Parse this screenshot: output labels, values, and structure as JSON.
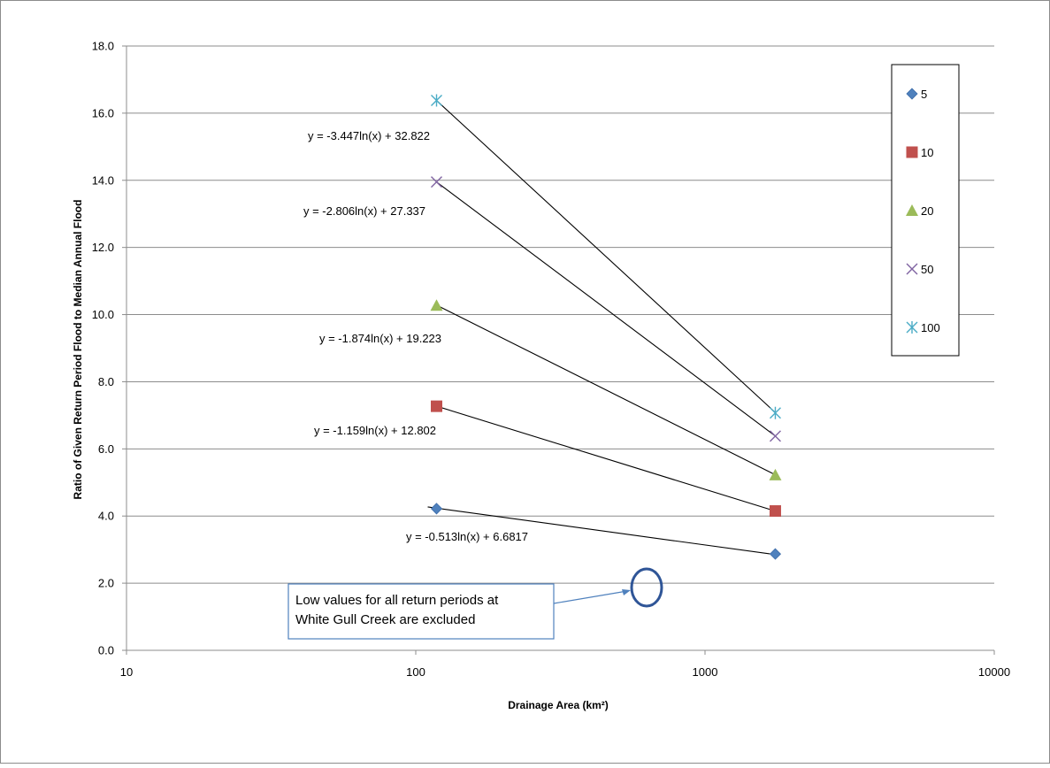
{
  "chart_data": {
    "type": "scatter",
    "x_scale": "log",
    "xlabel": "Drainage Area (km²)",
    "ylabel": "Ratio of Given Return Period Flood to Median Annual Flood",
    "xlim": [
      10,
      10000
    ],
    "ylim": [
      0,
      18
    ],
    "x_ticks": [
      "10",
      "100",
      "1000",
      "10000"
    ],
    "y_ticks": [
      "0.0",
      "2.0",
      "4.0",
      "6.0",
      "8.0",
      "10.0",
      "12.0",
      "14.0",
      "16.0",
      "18.0"
    ],
    "grid": "horizontal",
    "legend_position": "right",
    "series": [
      {
        "name": "5",
        "marker": "diamond",
        "color": "#4F81BD",
        "x": [
          118,
          1750
        ],
        "y": [
          4.22,
          2.87
        ],
        "trendline": {
          "equation": "y = -0.513ln(x) + 6.6817",
          "a": -0.513,
          "b": 6.6817,
          "x_from": 110,
          "x_to": 1750
        }
      },
      {
        "name": "10",
        "marker": "square",
        "color": "#C0504D",
        "x": [
          118,
          1750
        ],
        "y": [
          7.27,
          4.15
        ],
        "trendline": {
          "equation": "y = -1.159ln(x) + 12.802",
          "a": -1.159,
          "b": 12.802,
          "x_from": 118,
          "x_to": 1750
        }
      },
      {
        "name": "20",
        "marker": "triangle",
        "color": "#9BBB59",
        "x": [
          118,
          1750
        ],
        "y": [
          10.27,
          5.22
        ],
        "trendline": {
          "equation": "y = -1.874ln(x) + 19.223",
          "a": -1.874,
          "b": 19.223,
          "x_from": 118,
          "x_to": 1750
        }
      },
      {
        "name": "50",
        "marker": "x",
        "color": "#8064A2",
        "x": [
          118,
          1750
        ],
        "y": [
          13.95,
          6.38
        ],
        "trendline": {
          "equation": "y = -2.806ln(x) + 27.337",
          "a": -2.806,
          "b": 27.337,
          "x_from": 118,
          "x_to": 1750
        }
      },
      {
        "name": "100",
        "marker": "star",
        "color": "#4BACC6",
        "x": [
          118,
          1750
        ],
        "y": [
          16.38,
          7.07
        ],
        "trendline": {
          "equation": "y = -3.447ln(x) + 32.822",
          "a": -3.447,
          "b": 32.822,
          "x_from": 118,
          "x_to": 1750
        }
      }
    ],
    "annotation": {
      "text_lines": [
        "Low values for all return periods at",
        "White Gull Creek are excluded"
      ],
      "circle_color": "#2F5597",
      "arrow_color": "#4F81BD"
    }
  }
}
